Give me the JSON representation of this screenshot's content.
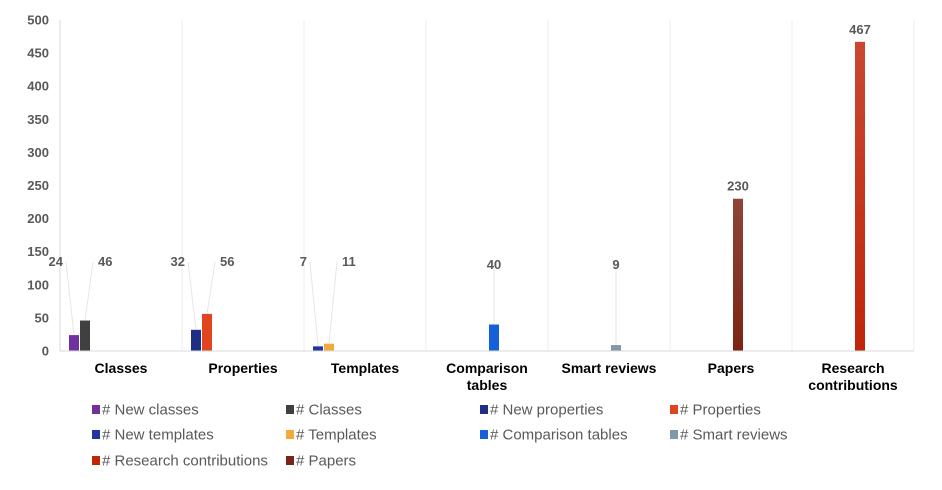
{
  "chart_data": {
    "type": "bar",
    "categories": [
      "Classes",
      "Properties",
      "Templates",
      "Comparison tables",
      "Smart reviews",
      "Papers",
      "Research contributions"
    ],
    "ylim": [
      0,
      500
    ],
    "yticks": [
      0,
      50,
      100,
      150,
      200,
      250,
      300,
      350,
      400,
      450,
      500
    ],
    "grid": "vertical category separators",
    "legend_position": "bottom",
    "series": [
      {
        "name": "# New classes",
        "color": "#7030a0",
        "category": "Classes",
        "value": 24
      },
      {
        "name": "# Classes",
        "color": "#404040",
        "category": "Classes",
        "value": 46
      },
      {
        "name": "# New properties",
        "color": "#1f2f86",
        "category": "Properties",
        "value": 32
      },
      {
        "name": "# Properties",
        "color": "#e0451f",
        "category": "Properties",
        "value": 56
      },
      {
        "name": "# New templates",
        "color": "#2433a0",
        "category": "Templates",
        "value": 7
      },
      {
        "name": "# Templates",
        "color": "#f4a93b",
        "category": "Templates",
        "value": 11
      },
      {
        "name": "# Comparison tables",
        "color": "#1560d8",
        "category": "Comparison tables",
        "value": 40
      },
      {
        "name": "# Smart reviews",
        "color": "#8497a8",
        "category": "Smart reviews",
        "value": 9
      },
      {
        "name": "# Research contributions",
        "color": "#c0260c",
        "category": "Research contributions",
        "value": 467
      },
      {
        "name": "# Papers",
        "color": "#7b2414",
        "category": "Papers",
        "value": 230
      }
    ]
  }
}
